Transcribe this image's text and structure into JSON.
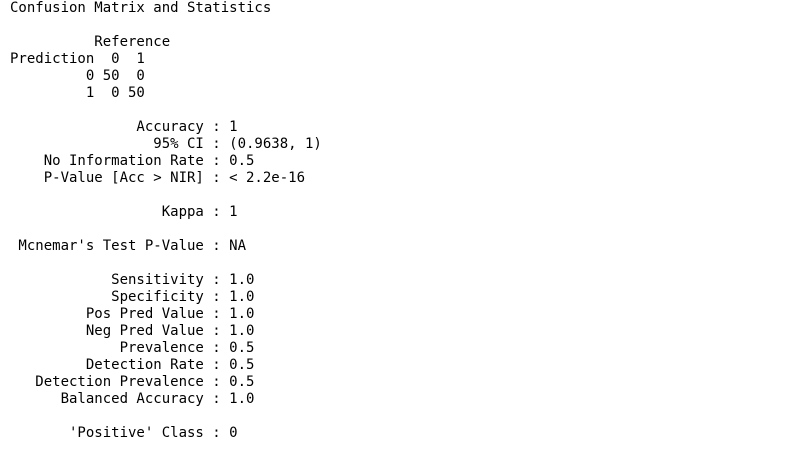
{
  "console": {
    "title": "Confusion Matrix and Statistics",
    "matrix": {
      "reference_header": "          Reference",
      "prediction_header": "Prediction  0  1",
      "row_0": "         0 50  0",
      "row_1": "         1  0 50"
    },
    "stats": {
      "accuracy": "               Accuracy : 1",
      "ci": "                 95% CI : (0.9638, 1)",
      "nir": "    No Information Rate : 0.5",
      "pvalue": "    P-Value [Acc > NIR] : < 2.2e-16",
      "kappa": "                  Kappa : 1",
      "mcnemar": " Mcnemar's Test P-Value : NA",
      "sensitivity": "            Sensitivity : 1.0",
      "specificity": "            Specificity : 1.0",
      "pos_pred": "         Pos Pred Value : 1.0",
      "neg_pred": "         Neg Pred Value : 1.0",
      "prevalence": "             Prevalence : 0.5",
      "detection_rate": "         Detection Rate : 0.5",
      "detection_prevalence": "   Detection Prevalence : 0.5",
      "balanced_accuracy": "      Balanced Accuracy : 1.0",
      "positive_class": "       'Positive' Class : 0"
    }
  }
}
